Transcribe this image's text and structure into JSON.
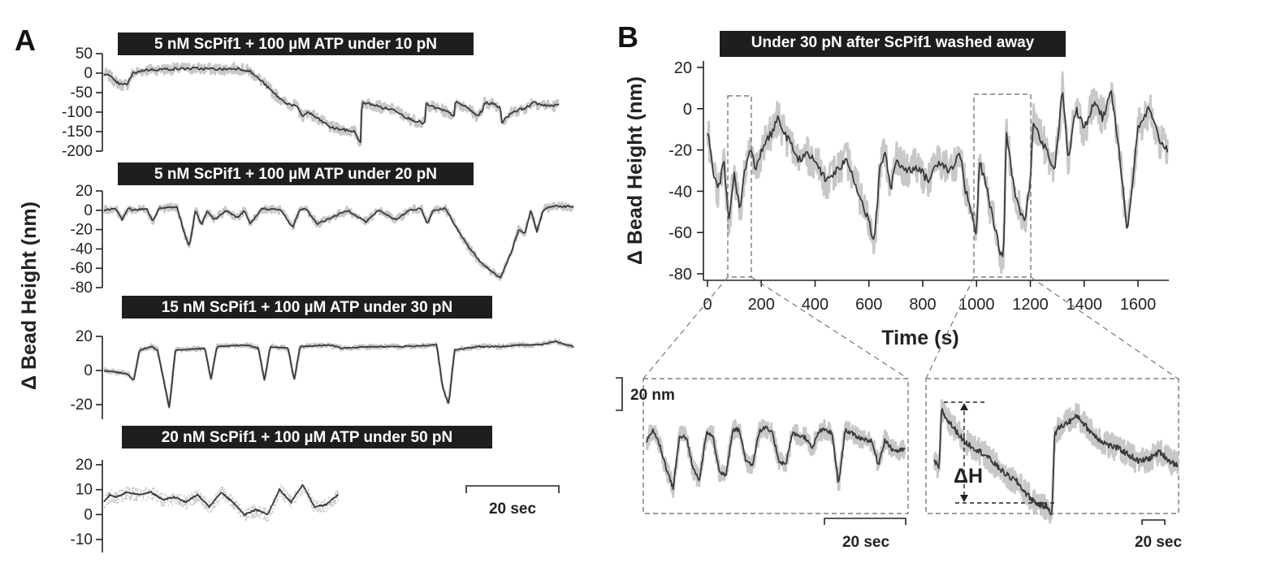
{
  "panel_a_letter": "A",
  "panel_b_letter": "B",
  "chart_data": [
    {
      "type": "line",
      "panel": "A",
      "title": "5 nM ScPif1 + 100 µM ATP under 10 pN",
      "ylabel": "Δ Bead Height (nm)",
      "ylim": [
        -200,
        50
      ],
      "yticks": [
        "50",
        "0",
        "-50",
        "-100",
        "-150",
        "-200"
      ],
      "series": [
        {
          "color": "#3a3a3a",
          "raw_color": "#c8c8c8",
          "x": [
            0,
            2,
            4,
            6,
            8,
            10,
            14,
            20,
            30,
            40,
            46,
            50,
            54,
            58,
            62,
            66,
            68,
            70,
            74,
            78,
            82,
            86,
            88,
            88.5,
            92,
            96,
            100,
            104,
            108,
            110,
            110.5,
            114,
            118,
            120,
            120.5,
            124,
            128,
            130,
            130.5,
            134,
            136,
            136.5,
            140,
            144,
            146,
            146.5,
            150,
            154,
            156
          ],
          "values": [
            0,
            -8,
            -22,
            -30,
            -28,
            0,
            8,
            10,
            12,
            10,
            12,
            5,
            -20,
            -50,
            -75,
            -85,
            -110,
            -100,
            -120,
            -140,
            -145,
            -150,
            -180,
            -75,
            -80,
            -90,
            -95,
            -115,
            -125,
            -130,
            -80,
            -90,
            -100,
            -110,
            -75,
            -85,
            -110,
            -95,
            -75,
            -80,
            -90,
            -125,
            -100,
            -90,
            -85,
            -75,
            -80,
            -85,
            -80
          ]
        }
      ]
    },
    {
      "type": "line",
      "panel": "A",
      "title": "5 nM ScPif1 + 100 µM ATP under 20 pN",
      "ylim": [
        -80,
        20
      ],
      "yticks": [
        "20",
        "0",
        "-20",
        "-40",
        "-60",
        "-80"
      ],
      "series": [
        {
          "color": "#3a3a3a",
          "raw_color": "#c8c8c8",
          "x": [
            0,
            4,
            6,
            8,
            10,
            14,
            16,
            18,
            24,
            26,
            28,
            30,
            32,
            34,
            36,
            40,
            44,
            46,
            48,
            52,
            58,
            62,
            64,
            66,
            70,
            80,
            86,
            90,
            96,
            100,
            104,
            106,
            108,
            112,
            116,
            120,
            124,
            130,
            134,
            136,
            138,
            140,
            142,
            144,
            146,
            148,
            150,
            154
          ],
          "values": [
            0,
            2,
            -10,
            2,
            0,
            2,
            -12,
            2,
            3,
            -20,
            -38,
            0,
            -15,
            0,
            -10,
            0,
            -8,
            0,
            -14,
            2,
            0,
            -18,
            0,
            2,
            -14,
            0,
            -12,
            0,
            -10,
            0,
            2,
            -14,
            0,
            2,
            -20,
            -40,
            -55,
            -70,
            -40,
            -20,
            -25,
            0,
            -22,
            0,
            3,
            5,
            4,
            4
          ]
        }
      ]
    },
    {
      "type": "line",
      "panel": "A",
      "title": "15 nM ScPif1 + 100 µM ATP under 30 pN",
      "ylim": [
        -30,
        30
      ],
      "yticks": [
        "20",
        "0",
        "-20"
      ],
      "series": [
        {
          "color": "#3a3a3a",
          "raw_color": "#c8c8c8",
          "x": [
            0,
            8,
            10,
            12,
            16,
            18,
            20,
            22,
            24,
            34,
            36,
            38,
            48,
            52,
            54,
            56,
            62,
            64,
            66,
            76,
            78,
            80,
            90,
            100,
            112,
            114,
            116,
            118,
            126,
            134,
            140,
            146,
            152,
            158
          ],
          "values": [
            0,
            -2,
            -6,
            12,
            14,
            12,
            -5,
            -22,
            12,
            13,
            -5,
            14,
            15,
            13,
            -6,
            14,
            13,
            -6,
            14,
            15,
            14,
            13,
            14,
            14,
            15,
            -10,
            -20,
            12,
            14,
            14,
            15,
            15,
            17,
            14
          ]
        }
      ]
    },
    {
      "type": "line",
      "panel": "A",
      "title": "20 nM ScPif1 + 100 µM ATP under 50 pN",
      "ylim": [
        -15,
        25
      ],
      "yticks": [
        "20",
        "10",
        "0",
        "-10"
      ],
      "series": [
        {
          "color": "#3a3a3a",
          "raw_color": "#c8c8c8",
          "x": [
            0,
            2,
            4,
            8,
            12,
            16,
            20,
            24,
            28,
            32,
            36,
            40,
            44,
            48,
            52,
            56,
            60,
            64,
            68,
            72,
            76,
            80
          ],
          "values": [
            5,
            8,
            7,
            9,
            8,
            9,
            6,
            7,
            5,
            8,
            3,
            9,
            5,
            0,
            2,
            0,
            10,
            5,
            12,
            3,
            4,
            8
          ]
        }
      ]
    },
    {
      "type": "line",
      "panel": "B",
      "title": "Under 30 pN after ScPif1 washed away",
      "xlabel": "Time (s)",
      "ylabel": "Δ Bead Height (nm)",
      "xlim": [
        0,
        1720
      ],
      "ylim": [
        -82,
        22
      ],
      "xticks": [
        "0",
        "200",
        "400",
        "600",
        "800",
        "1000",
        "1200",
        "1400",
        "1600"
      ],
      "yticks": [
        "20",
        "0",
        "-20",
        "-40",
        "-60",
        "-80"
      ],
      "series": [
        {
          "color": "#3a3a3a",
          "raw_color": "#c8c8c8",
          "x": [
            0,
            20,
            40,
            60,
            80,
            100,
            120,
            140,
            160,
            180,
            200,
            220,
            240,
            260,
            280,
            300,
            320,
            340,
            360,
            400,
            440,
            480,
            520,
            560,
            600,
            620,
            640,
            660,
            680,
            700,
            740,
            780,
            820,
            860,
            900,
            940,
            960,
            980,
            1000,
            1010,
            1040,
            1080,
            1100,
            1110,
            1130,
            1150,
            1180,
            1200,
            1210,
            1240,
            1260,
            1290,
            1320,
            1340,
            1370,
            1400,
            1440,
            1470,
            1500,
            1530,
            1560,
            1600,
            1640,
            1680,
            1710
          ],
          "values": [
            -10,
            -30,
            -40,
            -25,
            -55,
            -30,
            -50,
            -28,
            -20,
            -30,
            -20,
            -15,
            -12,
            -5,
            -10,
            -15,
            -20,
            -25,
            -22,
            -25,
            -35,
            -30,
            -25,
            -40,
            -55,
            -65,
            -30,
            -20,
            -40,
            -25,
            -30,
            -28,
            -35,
            -25,
            -30,
            -22,
            -40,
            -50,
            -62,
            -25,
            -40,
            -65,
            -75,
            -10,
            -30,
            -45,
            -55,
            -35,
            -5,
            -15,
            -20,
            -30,
            10,
            -25,
            0,
            -10,
            5,
            -5,
            10,
            -20,
            -60,
            -10,
            0,
            -15,
            -20
          ]
        }
      ]
    },
    {
      "type": "line",
      "panel": "B",
      "inset": "zoom 1",
      "series": [
        {
          "color": "#3a3a3a",
          "raw_color": "#c8c8c8",
          "x": [
            0,
            2,
            4,
            6,
            8,
            10,
            12,
            14,
            16,
            18,
            20,
            22,
            24,
            26,
            28,
            30,
            32,
            34,
            36,
            38,
            40,
            42,
            44,
            46,
            48,
            50,
            52,
            54,
            56,
            58,
            60,
            62,
            64,
            66,
            68,
            70,
            72,
            74,
            76,
            78
          ],
          "values": [
            2,
            8,
            0,
            -12,
            -22,
            5,
            4,
            -12,
            -18,
            6,
            5,
            -14,
            -15,
            8,
            8,
            -8,
            -10,
            7,
            9,
            6,
            -8,
            -10,
            6,
            5,
            4,
            -2,
            7,
            8,
            6,
            -20,
            8,
            6,
            4,
            3,
            2,
            -10,
            3,
            -2,
            -3,
            -2
          ]
        }
      ]
    },
    {
      "type": "line",
      "panel": "B",
      "inset": "zoom 2",
      "annotation": "ΔH",
      "series": [
        {
          "color": "#3a3a3a",
          "raw_color": "#c8c8c8",
          "x": [
            0,
            2,
            3,
            4,
            8,
            12,
            16,
            20,
            24,
            28,
            32,
            36,
            40,
            44,
            46,
            47,
            48,
            52,
            56,
            60,
            64,
            68,
            72,
            76,
            80,
            84,
            88,
            92,
            95
          ],
          "values": [
            -2,
            -4,
            15,
            12,
            8,
            4,
            2,
            0,
            -3,
            -6,
            -8,
            -12,
            -15,
            -16,
            -18,
            6,
            8,
            10,
            12,
            8,
            5,
            3,
            2,
            0,
            -2,
            -1,
            1,
            -2,
            -3
          ]
        }
      ]
    }
  ],
  "scale_bars": {
    "a_time": "20 sec",
    "b_height": "20 nm",
    "b_inset1_time": "20 sec",
    "b_inset2_time": "20 sec"
  }
}
